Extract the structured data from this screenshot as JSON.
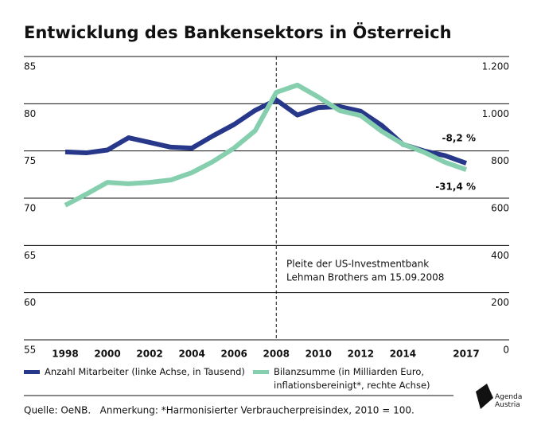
{
  "chart_data": {
    "type": "line",
    "title": "Entwicklung des Bankensektors in Österreich",
    "x": [
      1998,
      1999,
      2000,
      2001,
      2002,
      2003,
      2004,
      2005,
      2006,
      2007,
      2008,
      2009,
      2010,
      2011,
      2012,
      2013,
      2014,
      2015,
      2016,
      2017
    ],
    "xlim": [
      1998,
      2017
    ],
    "xticks": [
      1998,
      2000,
      2002,
      2004,
      2006,
      2008,
      2010,
      2012,
      2014,
      2017
    ],
    "ylim": [
      55,
      85
    ],
    "yticks": [
      55,
      60,
      65,
      70,
      75,
      80,
      85
    ],
    "y2lim": [
      0,
      1200
    ],
    "y2ticks": [
      0,
      200,
      400,
      600,
      {
        "value": 800,
        "label": "800"
      },
      {
        "value": 1000,
        "label": "1.000"
      },
      {
        "value": 1200,
        "label": "1.200"
      }
    ],
    "grid": true,
    "series": [
      {
        "name": "Anzahl Mitarbeiter (linke Achse, in Tausend)",
        "color": "#27378a",
        "values": [
          74.9,
          74.8,
          75.1,
          76.4,
          75.9,
          75.4,
          75.3,
          76.6,
          77.8,
          79.3,
          80.4,
          78.8,
          79.6,
          79.7,
          79.2,
          77.7,
          75.7,
          75.0,
          74.5,
          73.7
        ],
        "end_label": "-8,2 %"
      },
      {
        "name": "Bilanzsumme (in Milliarden Euro, inflationsbereinigt*, rechte Achse)",
        "color": "#86cfae",
        "axis": "y2",
        "values": [
          570,
          617,
          667,
          661,
          667,
          677,
          708,
          755,
          812,
          886,
          1048,
          1079,
          1028,
          971,
          950,
          883,
          829,
          795,
          752,
          721
        ],
        "end_label": "-31,4 %"
      }
    ],
    "event_x": 2008,
    "annotation": [
      "Pleite der US-Investmentbank",
      "Lehman Brothers am 15.09.2008"
    ],
    "source": "Quelle: OeNB.   Anmerkung: *Harmonisierter Verbraucherpreisindex, 2010 = 100.",
    "logo": "Agenda Austria"
  }
}
